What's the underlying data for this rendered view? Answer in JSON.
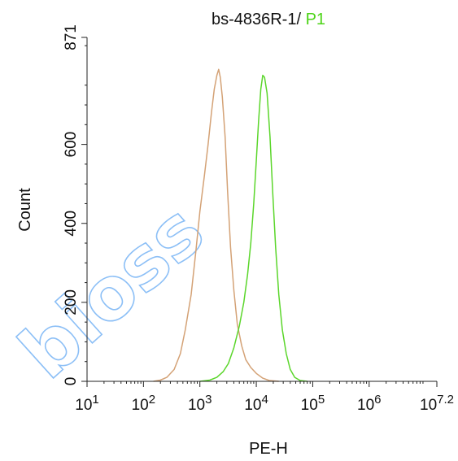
{
  "chart_data": {
    "type": "area",
    "title_parts": [
      {
        "text": "bs-4836R-1/ ",
        "color": "#111111"
      },
      {
        "text": "P1",
        "color": "#4cd417"
      }
    ],
    "xlabel": "PE-H",
    "ylabel": "Count",
    "x_scale": "log",
    "xlim": [
      10,
      15848932
    ],
    "ylim": [
      0,
      871
    ],
    "x_ticks": [
      {
        "value": 10,
        "base": "10",
        "exp": "1"
      },
      {
        "value": 100,
        "base": "10",
        "exp": "2"
      },
      {
        "value": 1000,
        "base": "10",
        "exp": "3"
      },
      {
        "value": 10000,
        "base": "10",
        "exp": "4"
      },
      {
        "value": 100000,
        "base": "10",
        "exp": "5"
      },
      {
        "value": 1000000,
        "base": "10",
        "exp": "6"
      },
      {
        "value": 15848932,
        "base": "10",
        "exp": "7.2"
      }
    ],
    "y_ticks": [
      {
        "value": 0,
        "label": "0"
      },
      {
        "value": 200,
        "label": "200"
      },
      {
        "value": 400,
        "label": "400"
      },
      {
        "value": 600,
        "label": "600"
      },
      {
        "value": 871,
        "label": "871"
      }
    ],
    "series": [
      {
        "color": "#d4a276",
        "points": [
          [
            150,
            0
          ],
          [
            200,
            3
          ],
          [
            260,
            10
          ],
          [
            350,
            30
          ],
          [
            450,
            70
          ],
          [
            550,
            130
          ],
          [
            700,
            220
          ],
          [
            850,
            330
          ],
          [
            1000,
            430
          ],
          [
            1200,
            520
          ],
          [
            1400,
            600
          ],
          [
            1600,
            680
          ],
          [
            1800,
            740
          ],
          [
            2000,
            775
          ],
          [
            2150,
            790
          ],
          [
            2300,
            770
          ],
          [
            2500,
            720
          ],
          [
            2800,
            620
          ],
          [
            3100,
            480
          ],
          [
            3500,
            340
          ],
          [
            4000,
            230
          ],
          [
            4600,
            145
          ],
          [
            5500,
            90
          ],
          [
            6500,
            55
          ],
          [
            8000,
            35
          ],
          [
            10000,
            20
          ],
          [
            13000,
            8
          ],
          [
            17000,
            2
          ],
          [
            25000,
            0
          ]
        ]
      },
      {
        "color": "#5bd62b",
        "points": [
          [
            1000,
            0
          ],
          [
            1500,
            3
          ],
          [
            2000,
            10
          ],
          [
            2600,
            25
          ],
          [
            3200,
            45
          ],
          [
            4000,
            85
          ],
          [
            5000,
            140
          ],
          [
            6000,
            200
          ],
          [
            7000,
            270
          ],
          [
            8000,
            350
          ],
          [
            9000,
            450
          ],
          [
            10000,
            560
          ],
          [
            11000,
            660
          ],
          [
            12000,
            740
          ],
          [
            13000,
            775
          ],
          [
            14000,
            770
          ],
          [
            15500,
            730
          ],
          [
            17500,
            620
          ],
          [
            19500,
            480
          ],
          [
            22000,
            340
          ],
          [
            25000,
            220
          ],
          [
            29000,
            130
          ],
          [
            34000,
            70
          ],
          [
            40000,
            30
          ],
          [
            48000,
            10
          ],
          [
            60000,
            2
          ],
          [
            80000,
            0
          ]
        ]
      }
    ],
    "watermark_text": "bioss"
  }
}
